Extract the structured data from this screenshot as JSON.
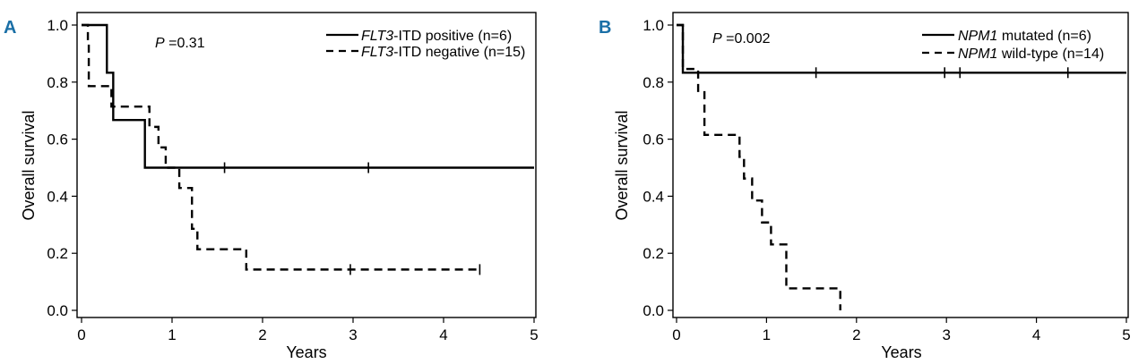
{
  "chart_data": [
    {
      "panel": "A",
      "type": "line",
      "title": "",
      "xlabel": "Years",
      "ylabel": "Overall survival",
      "xlim": [
        0,
        5
      ],
      "ylim": [
        0,
        1
      ],
      "xticks": [
        "0",
        "1",
        "2",
        "3",
        "4",
        "5"
      ],
      "yticks": [
        "0.0",
        "0.2",
        "0.4",
        "0.6",
        "0.8",
        "1.0"
      ],
      "pvalue": {
        "p": "P",
        "rest": " =0.31"
      },
      "series": [
        {
          "name_italic": "FLT3",
          "name_rest": "-ITD positive (n=6)",
          "style": "solid",
          "steps": [
            [
              0,
              1.0
            ],
            [
              0.28,
              0.833
            ],
            [
              0.35,
              0.667
            ],
            [
              0.7,
              0.5
            ],
            [
              5.0,
              0.5
            ]
          ],
          "censored": [
            [
              1.58,
              0.5
            ],
            [
              3.17,
              0.5
            ]
          ]
        },
        {
          "name_italic": "FLT3",
          "name_rest": "-ITD negative (n=15)",
          "style": "dashed",
          "steps": [
            [
              0,
              1.0
            ],
            [
              0.07,
              0.933
            ],
            [
              0.08,
              0.786
            ],
            [
              0.33,
              0.714
            ],
            [
              0.75,
              0.643
            ],
            [
              0.85,
              0.571
            ],
            [
              0.93,
              0.5
            ],
            [
              1.08,
              0.429
            ],
            [
              1.22,
              0.286
            ],
            [
              1.28,
              0.214
            ],
            [
              1.82,
              0.143
            ],
            [
              4.4,
              0.143
            ]
          ],
          "censored": [
            [
              2.97,
              0.143
            ],
            [
              4.4,
              0.143
            ]
          ]
        }
      ]
    },
    {
      "panel": "B",
      "type": "line",
      "title": "",
      "xlabel": "Years",
      "ylabel": "Overall survival",
      "xlim": [
        0,
        5
      ],
      "ylim": [
        0,
        1
      ],
      "xticks": [
        "0",
        "1",
        "2",
        "3",
        "4",
        "5"
      ],
      "yticks": [
        "0.0",
        "0.2",
        "0.4",
        "0.6",
        "0.8",
        "1.0"
      ],
      "pvalue": {
        "p": "P",
        "rest": " =0.002"
      },
      "series": [
        {
          "name_italic": "NPM1",
          "name_rest": " mutated (n=6)",
          "style": "solid",
          "steps": [
            [
              0,
              1.0
            ],
            [
              0.07,
              0.833
            ],
            [
              5.0,
              0.833
            ]
          ],
          "censored": [
            [
              1.55,
              0.833
            ],
            [
              2.98,
              0.833
            ],
            [
              3.15,
              0.833
            ],
            [
              4.35,
              0.833
            ]
          ]
        },
        {
          "name_italic": "NPM1",
          "name_rest": " wild-type (n=14)",
          "style": "dashed",
          "steps": [
            [
              0,
              1.0
            ],
            [
              0.07,
              0.846
            ],
            [
              0.24,
              0.769
            ],
            [
              0.31,
              0.615
            ],
            [
              0.7,
              0.538
            ],
            [
              0.75,
              0.462
            ],
            [
              0.84,
              0.385
            ],
            [
              0.95,
              0.308
            ],
            [
              1.05,
              0.231
            ],
            [
              1.22,
              0.077
            ],
            [
              1.82,
              0.0
            ]
          ],
          "censored": []
        }
      ]
    }
  ]
}
